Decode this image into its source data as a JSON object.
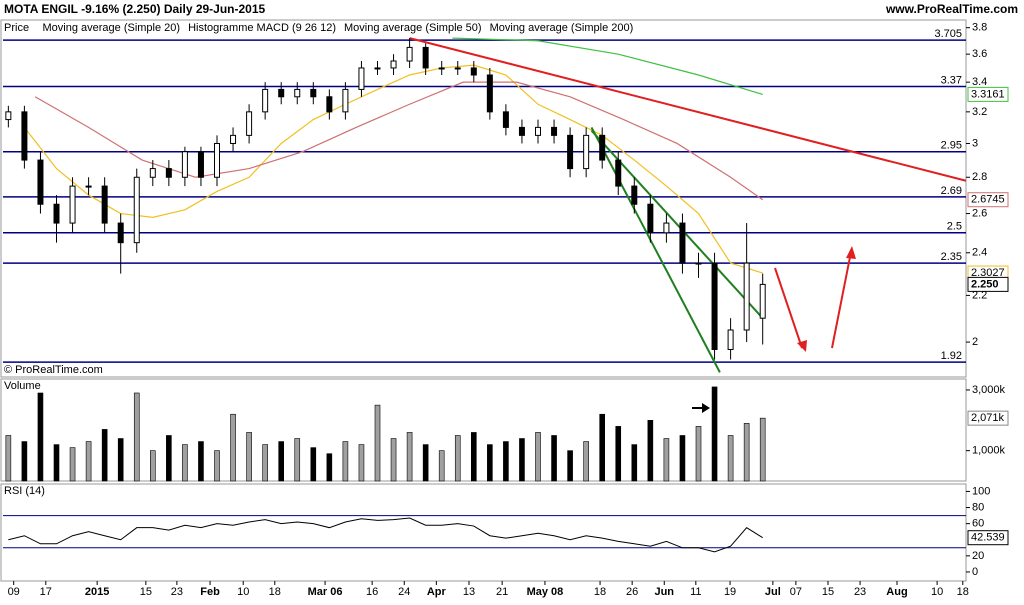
{
  "header": {
    "title": "MOTA ENGIL  -9.16% (2.250)  Daily  29-Jun-2015",
    "site": "www.ProRealTime.com"
  },
  "chart_data": [
    {
      "type": "candlestick",
      "panel_label": "Price",
      "watermark": "© ProRealTime.com",
      "log_scale": true,
      "xlim": [
        0,
        180
      ],
      "ylim": [
        1.87,
        3.86
      ],
      "yticks": [
        3.8,
        3.6,
        3.4,
        3.2,
        3,
        2.8,
        2.6,
        2.4,
        2.2,
        2
      ],
      "xticks": [
        {
          "value": 2,
          "label": "09"
        },
        {
          "value": 8,
          "label": "17"
        },
        {
          "value": 17.6,
          "label": "2015"
        },
        {
          "value": 26.7,
          "label": "15"
        },
        {
          "value": 32.5,
          "label": "23"
        },
        {
          "value": 38.7,
          "label": "Feb"
        },
        {
          "value": 44.9,
          "label": "10"
        },
        {
          "value": 50.8,
          "label": "18"
        },
        {
          "value": 60.2,
          "label": "Mar 06"
        },
        {
          "value": 69,
          "label": "16"
        },
        {
          "value": 75,
          "label": "24"
        },
        {
          "value": 81,
          "label": "Apr"
        },
        {
          "value": 87.1,
          "label": "13"
        },
        {
          "value": 93.3,
          "label": "21"
        },
        {
          "value": 101.3,
          "label": "May 08"
        },
        {
          "value": 111.6,
          "label": "18"
        },
        {
          "value": 117.6,
          "label": "26"
        },
        {
          "value": 123.6,
          "label": "Jun"
        },
        {
          "value": 129.5,
          "label": "11"
        },
        {
          "value": 135.9,
          "label": "19"
        },
        {
          "value": 143.9,
          "label": "Jul"
        },
        {
          "value": 148.2,
          "label": "07"
        },
        {
          "value": 154.2,
          "label": "15"
        },
        {
          "value": 160.2,
          "label": "23"
        },
        {
          "value": 167.1,
          "label": "Aug"
        },
        {
          "value": 174.6,
          "label": "10"
        },
        {
          "value": 179.4,
          "label": "18"
        }
      ],
      "x": [
        1,
        4,
        7,
        10,
        13,
        16,
        19,
        22,
        25,
        28,
        31,
        34,
        37,
        40,
        43,
        46,
        49,
        52,
        55,
        58,
        61,
        64,
        67,
        70,
        73,
        76,
        79,
        82,
        85,
        88,
        91,
        94,
        97,
        100,
        103,
        106,
        109,
        112,
        115,
        118,
        121,
        124,
        127,
        130,
        133,
        136,
        139,
        142
      ],
      "open": [
        3.15,
        3.2,
        2.9,
        2.65,
        2.55,
        2.75,
        2.75,
        2.55,
        2.45,
        2.8,
        2.85,
        2.8,
        2.95,
        2.8,
        3.0,
        3.05,
        3.2,
        3.35,
        3.3,
        3.35,
        3.3,
        3.2,
        3.35,
        3.5,
        3.5,
        3.55,
        3.65,
        3.5,
        3.5,
        3.5,
        3.45,
        3.2,
        3.1,
        3.05,
        3.1,
        3.05,
        2.85,
        3.05,
        2.9,
        2.75,
        2.65,
        2.5,
        2.55,
        2.35,
        2.35,
        1.97,
        2.05,
        2.1
      ],
      "high": [
        3.24,
        3.24,
        2.95,
        2.7,
        2.8,
        2.8,
        2.8,
        2.6,
        2.85,
        2.9,
        2.9,
        2.98,
        2.98,
        3.05,
        3.1,
        3.25,
        3.4,
        3.4,
        3.4,
        3.4,
        3.35,
        3.4,
        3.55,
        3.55,
        3.6,
        3.72,
        3.68,
        3.55,
        3.55,
        3.55,
        3.5,
        3.25,
        3.15,
        3.15,
        3.15,
        3.1,
        3.1,
        3.1,
        2.95,
        2.8,
        2.7,
        2.6,
        2.6,
        2.4,
        2.4,
        2.1,
        2.55,
        2.3
      ],
      "low": [
        3.1,
        2.85,
        2.6,
        2.45,
        2.5,
        2.7,
        2.5,
        2.3,
        2.4,
        2.75,
        2.75,
        2.75,
        2.75,
        2.75,
        2.95,
        3.0,
        3.15,
        3.25,
        3.25,
        3.25,
        3.15,
        3.15,
        3.3,
        3.45,
        3.45,
        3.5,
        3.45,
        3.45,
        3.45,
        3.4,
        3.15,
        3.05,
        3.0,
        3.0,
        3.0,
        2.8,
        2.8,
        2.85,
        2.7,
        2.6,
        2.45,
        2.45,
        2.3,
        2.28,
        1.93,
        1.93,
        2.0,
        1.99
      ],
      "close": [
        3.2,
        2.9,
        2.65,
        2.55,
        2.75,
        2.75,
        2.55,
        2.45,
        2.8,
        2.85,
        2.8,
        2.95,
        2.8,
        3.0,
        3.05,
        3.2,
        3.35,
        3.3,
        3.35,
        3.3,
        3.2,
        3.35,
        3.5,
        3.5,
        3.55,
        3.65,
        3.5,
        3.5,
        3.5,
        3.45,
        3.2,
        3.1,
        3.05,
        3.1,
        3.05,
        2.85,
        3.05,
        2.9,
        2.75,
        2.65,
        2.5,
        2.55,
        2.35,
        2.35,
        1.97,
        2.05,
        2.35,
        2.25
      ],
      "last_label": "2.250",
      "levels": [
        3.705,
        3.37,
        2.95,
        2.69,
        2.5,
        2.35,
        1.92
      ],
      "level_color": "#000080",
      "series": [
        {
          "name": "Moving average (Simple 20)",
          "color": "#f0c020",
          "x": [
            4,
            10,
            16,
            22,
            28,
            34,
            40,
            46,
            52,
            58,
            64,
            70,
            76,
            82,
            88,
            94,
            100,
            106,
            112,
            118,
            124,
            130,
            136,
            142
          ],
          "values": [
            3.1,
            2.85,
            2.7,
            2.6,
            2.58,
            2.62,
            2.72,
            2.8,
            3.0,
            3.15,
            3.25,
            3.35,
            3.45,
            3.5,
            3.52,
            3.45,
            3.25,
            3.15,
            3.05,
            2.9,
            2.75,
            2.6,
            2.35,
            2.3027
          ]
        },
        {
          "name": "Moving average (Simple 50)",
          "color": "#d07070",
          "x": [
            6,
            16,
            26,
            36,
            46,
            56,
            66,
            76,
            86,
            96,
            106,
            116,
            126,
            136,
            142
          ],
          "values": [
            3.3,
            3.1,
            2.9,
            2.8,
            2.85,
            2.95,
            3.1,
            3.25,
            3.4,
            3.4,
            3.3,
            3.15,
            3.0,
            2.8,
            2.6745
          ]
        },
        {
          "name": "Moving average (Simple 200)",
          "color": "#40c040",
          "x": [
            84,
            100,
            115,
            130,
            142
          ],
          "values": [
            3.72,
            3.7,
            3.6,
            3.45,
            3.3161
          ]
        }
      ],
      "legend_extra": "Histogramme MACD (9 26 12)",
      "trendlines": [
        {
          "color": "#e02020",
          "x": [
            76,
            180
          ],
          "values": [
            3.72,
            2.78
          ]
        },
        {
          "color": "#208020",
          "x": [
            110,
            134
          ],
          "values": [
            3.1,
            1.88
          ]
        },
        {
          "color": "#208020",
          "x": [
            110,
            142
          ],
          "values": [
            3.08,
            2.1
          ]
        }
      ]
    },
    {
      "type": "volume",
      "panel_label": "Volume",
      "xlim": [
        0,
        180
      ],
      "ylim": [
        0,
        3328
      ],
      "yticks": [
        {
          "value": 3000,
          "label": "3,000k"
        },
        {
          "value": 1000,
          "label": "1,000k"
        }
      ],
      "values": [
        1500,
        1300,
        2900,
        1200,
        1100,
        1300,
        1700,
        1400,
        2900,
        1000,
        1500,
        1200,
        1300,
        1000,
        2200,
        1600,
        1200,
        1300,
        1400,
        1100,
        900,
        1300,
        1200,
        2500,
        1400,
        1600,
        1200,
        1000,
        1500,
        1600,
        1200,
        1300,
        1400,
        1600,
        1500,
        1000,
        1300,
        2200,
        1800,
        1200,
        2000,
        1400,
        1500,
        1800,
        3100,
        1500,
        1900,
        2071
      ],
      "last_label": "2,071k",
      "up_color": "#a0a0a0",
      "down_color": "#000000"
    },
    {
      "type": "rsi",
      "panel_label": "RSI (14)",
      "xlim": [
        0,
        180
      ],
      "ylim": [
        -10,
        108
      ],
      "yticks": [
        100,
        80,
        60,
        20,
        0
      ],
      "bands": [
        70,
        30
      ],
      "color": "#000000",
      "values": [
        40,
        45,
        35,
        35,
        45,
        50,
        45,
        40,
        55,
        55,
        52,
        58,
        55,
        60,
        58,
        62,
        65,
        60,
        62,
        60,
        55,
        62,
        66,
        64,
        65,
        67,
        58,
        58,
        60,
        57,
        45,
        42,
        45,
        48,
        45,
        40,
        45,
        42,
        38,
        35,
        32,
        38,
        30,
        30,
        25,
        32,
        55,
        42.539
      ]
    }
  ]
}
